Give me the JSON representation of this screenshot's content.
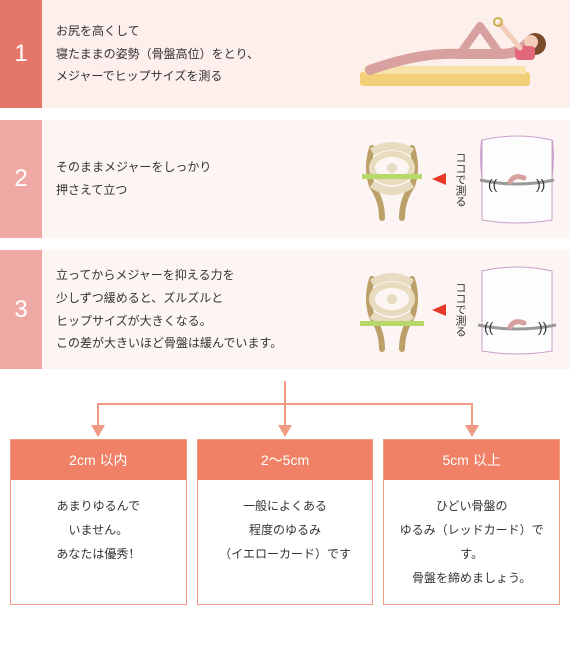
{
  "colors": {
    "step1_num": "#e5766a",
    "step1_body": "#fdefec",
    "step2_num": "#efa9a4",
    "step2_body": "#fdf5f3",
    "step3_num": "#efa9a4",
    "step3_body": "#fdf5f3",
    "accent": "#f29b84",
    "card_head": "#f08066",
    "arrow_red": "#e73828"
  },
  "steps": [
    {
      "num": "1",
      "text": "お尻を高くして\n寝たままの姿勢（骨盤高位）をとり、\nメジャーでヒップサイズを測る"
    },
    {
      "num": "2",
      "text": "そのままメジャーをしっかり\n押さえて立つ",
      "measure_label": "ココで測る"
    },
    {
      "num": "3",
      "text": "立ってからメジャーを抑える力を\n少しずつ緩めると、ズルズルと\nヒップサイズが大きくなる。\nこの差が大きいほど骨盤は緩んでいます。",
      "measure_label": "ココで測る"
    }
  ],
  "results": [
    {
      "title": "2cm 以内",
      "body": "あまりゆるんで\nいません。\nあなたは優秀！"
    },
    {
      "title": "2〜5cm",
      "body": "一般によくある\n程度のゆるみ\n（イエローカード）です"
    },
    {
      "title": "5cm 以上",
      "body": "ひどい骨盤の\nゆるみ（レッドカード）です。\n骨盤を締めましょう。"
    }
  ],
  "illustrations": {
    "step1_alt": "lying-pelvis-raise",
    "hip_bone_alt": "pelvis-bone-front",
    "hip_person_alt": "waist-measure-person"
  }
}
